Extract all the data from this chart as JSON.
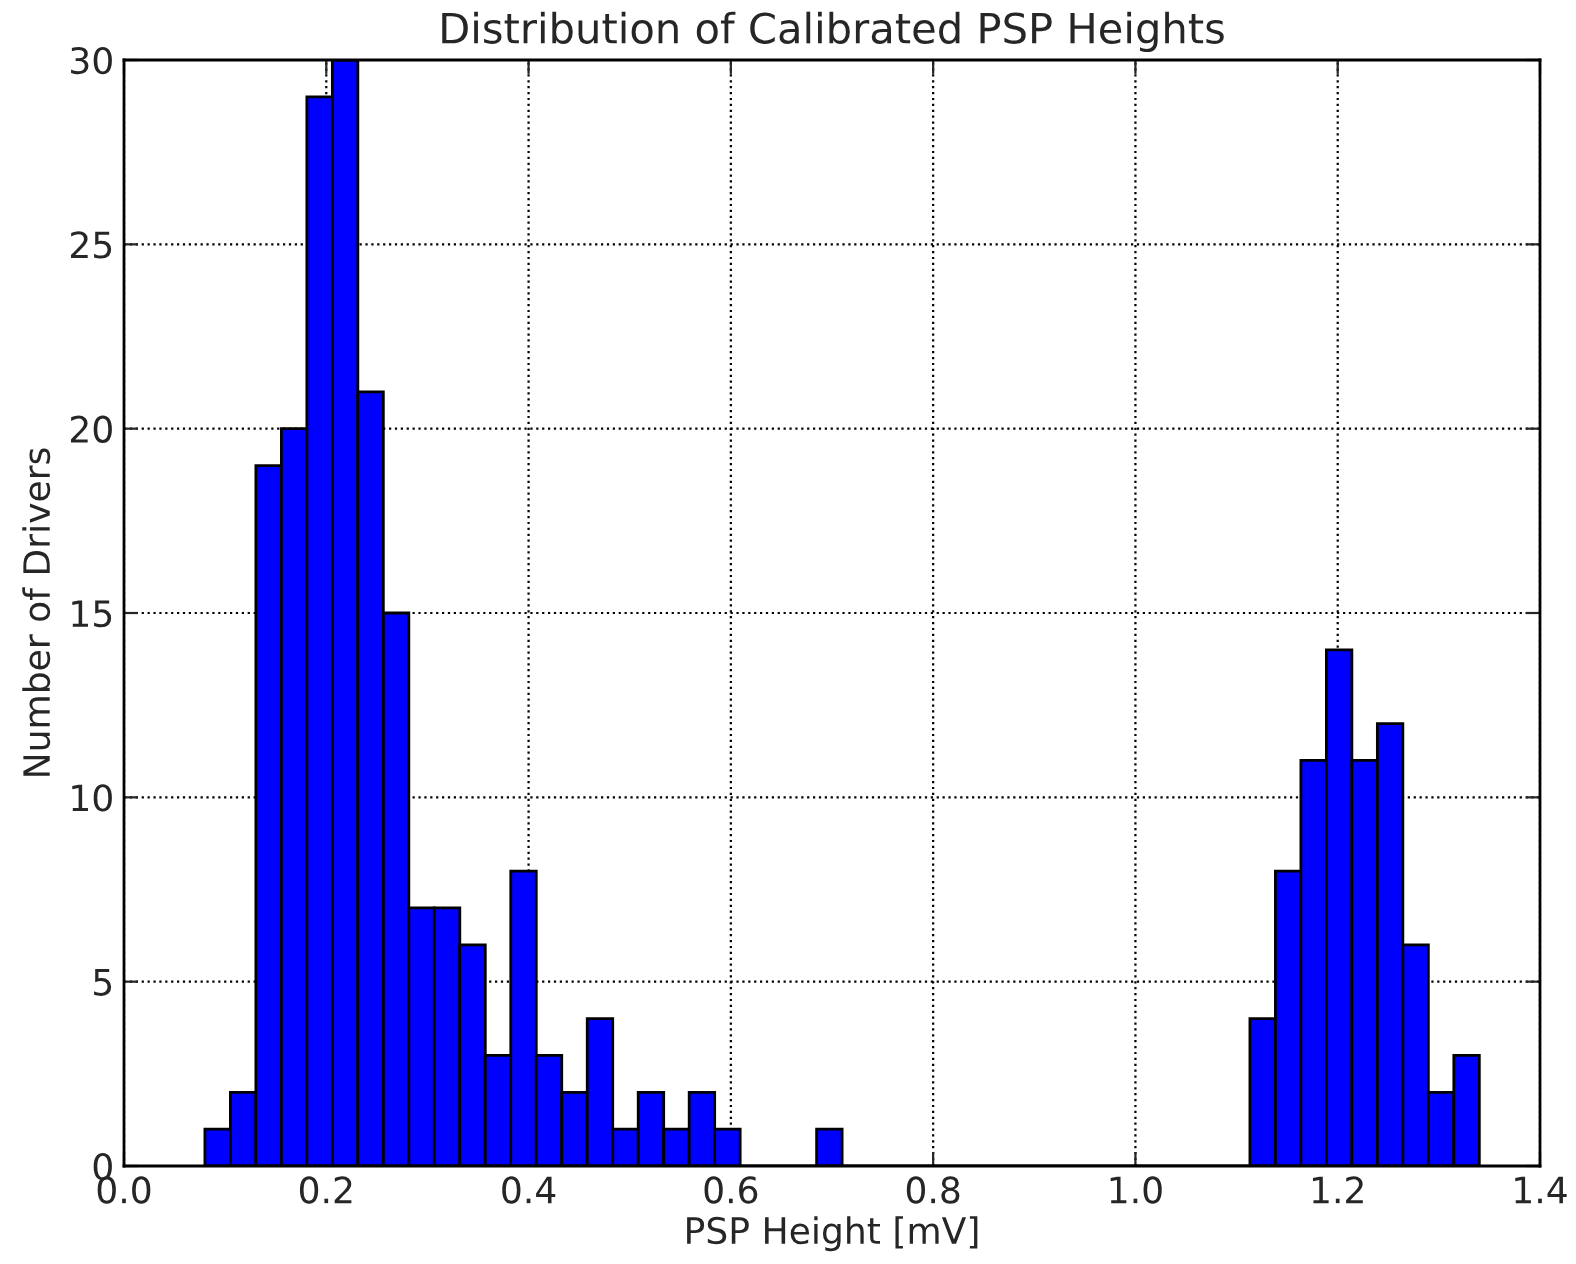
{
  "chart_data": {
    "type": "histogram",
    "title": "Distribution of Calibrated PSP Heights",
    "xlabel": "PSP Height [mV]",
    "ylabel": "Number of Drivers",
    "bins": [
      0.08,
      0.1052,
      0.1304,
      0.1556,
      0.1808,
      0.206,
      0.2312,
      0.2564,
      0.2816,
      0.3068,
      0.332,
      0.3572,
      0.3824,
      0.4076,
      0.4328,
      0.458,
      0.4832,
      0.5084,
      0.5336,
      0.5588,
      0.584,
      0.6092,
      0.6344,
      0.6596,
      0.6848,
      0.71,
      0.7352,
      0.7604,
      0.7856,
      0.8108,
      0.836,
      0.8612,
      0.8864,
      0.9116,
      0.9368,
      0.962,
      0.9872,
      1.0124,
      1.0376,
      1.0628,
      1.088,
      1.1132,
      1.1384,
      1.1636,
      1.1888,
      1.214,
      1.2392,
      1.2644,
      1.2896,
      1.3148,
      1.34
    ],
    "values": [
      1,
      2,
      19,
      20,
      29,
      30,
      21,
      15,
      7,
      7,
      6,
      3,
      8,
      3,
      2,
      4,
      1,
      2,
      1,
      2,
      1,
      0,
      0,
      0,
      1,
      0,
      0,
      0,
      0,
      0,
      0,
      0,
      0,
      0,
      0,
      0,
      0,
      0,
      0,
      0,
      0,
      4,
      8,
      11,
      14,
      11,
      12,
      6,
      2,
      3
    ],
    "color": "#0000ff",
    "xlim": [
      0,
      1.4
    ],
    "xticks": [
      {
        "value": 0,
        "label": "0.0"
      },
      {
        "value": 0.2,
        "label": "0.2"
      },
      {
        "value": 0.4,
        "label": "0.4"
      },
      {
        "value": 0.6,
        "label": "0.6"
      },
      {
        "value": 0.8,
        "label": "0.8"
      },
      {
        "value": 1.0,
        "label": "1.0"
      },
      {
        "value": 1.2,
        "label": "1.2"
      },
      {
        "value": 1.4,
        "label": "1.4"
      }
    ],
    "ylim": [
      0,
      30
    ],
    "yticks": [
      0,
      5,
      10,
      15,
      20,
      25,
      30
    ],
    "grid": true,
    "line_style": "dotted"
  }
}
